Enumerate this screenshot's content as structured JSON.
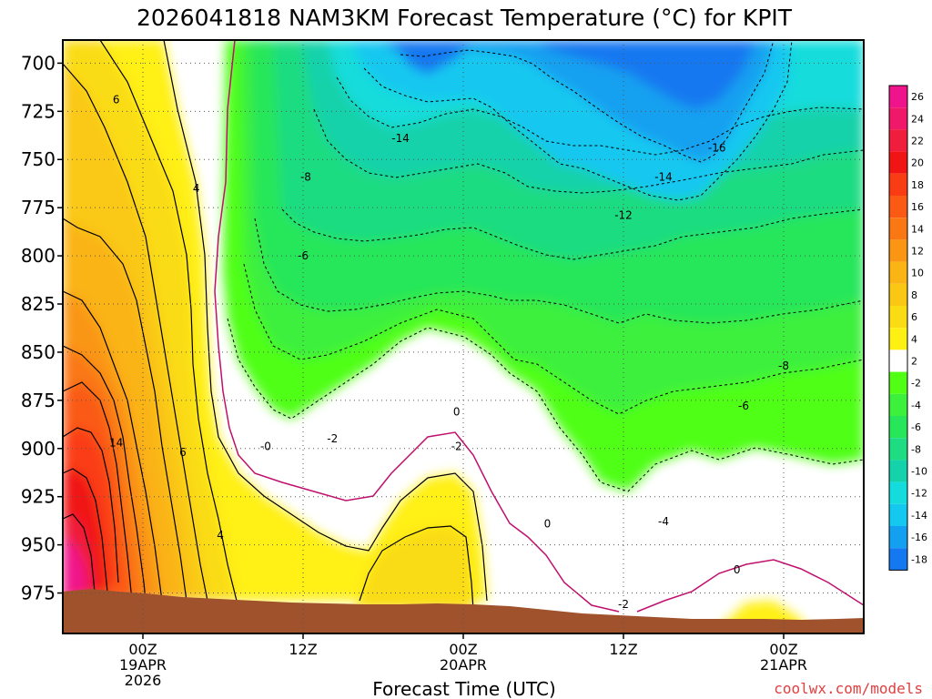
{
  "chart_data": {
    "type": "heatmap",
    "title": "2026041818 NAM3KM Forecast Temperature (°C) for KPIT",
    "xlabel": "Forecast Time (UTC)",
    "ylabel": "",
    "y_axis": {
      "ticks": [
        700,
        725,
        750,
        775,
        800,
        825,
        850,
        875,
        900,
        925,
        950,
        975
      ],
      "tick_labels": [
        "700",
        "725",
        "750",
        "775",
        "800",
        "825",
        "850",
        "875",
        "900",
        "925",
        "950",
        "975"
      ],
      "range": [
        688,
        996
      ],
      "inverted": true
    },
    "x_axis": {
      "ticks": [
        6,
        18,
        30,
        42,
        54
      ],
      "tick_labels": [
        [
          "00Z",
          "19APR",
          "2026"
        ],
        [
          "12Z"
        ],
        [
          "00Z",
          "20APR"
        ],
        [
          "12Z"
        ],
        [
          "00Z",
          "21APR"
        ]
      ],
      "range_forecast_hours": [
        0,
        60
      ]
    },
    "grid": "dotted at y ticks",
    "colorbar": {
      "labels": [
        "26",
        "24",
        "22",
        "20",
        "18",
        "16",
        "14",
        "12",
        "10",
        "8",
        "6",
        "4",
        "2",
        "-2",
        "-4",
        "-6",
        "-8",
        "-10",
        "-12",
        "-14",
        "-16",
        "-18"
      ],
      "colors": [
        "#f0148c",
        "#f01868",
        "#f01e3c",
        "#f01414",
        "#fa3c14",
        "#fa5a14",
        "#fa7814",
        "#fa9614",
        "#fab414",
        "#fac814",
        "#fadc14",
        "#fff014",
        "#ffffff",
        "#50ff14",
        "#3cf03c",
        "#28e65a",
        "#1edc82",
        "#14d2aa",
        "#14dcdc",
        "#14c8f0",
        "#14a0f0",
        "#1478f0"
      ]
    },
    "contour_labels": [
      {
        "text": "6",
        "hour": 4.0,
        "pres": 719
      },
      {
        "text": "4",
        "hour": 10.0,
        "pres": 765
      },
      {
        "text": "14",
        "hour": 4.0,
        "pres": 897
      },
      {
        "text": "6",
        "hour": 9.0,
        "pres": 902
      },
      {
        "text": "4",
        "hour": 11.8,
        "pres": 945
      },
      {
        "text": "-8",
        "hour": 18.2,
        "pres": 759
      },
      {
        "text": "-6",
        "hour": 18.0,
        "pres": 800
      },
      {
        "text": "-14",
        "hour": 25.3,
        "pres": 739
      },
      {
        "text": "-0",
        "hour": 15.2,
        "pres": 899
      },
      {
        "text": "-2",
        "hour": 20.2,
        "pres": 895
      },
      {
        "text": "0",
        "hour": 29.5,
        "pres": 881
      },
      {
        "text": "-2",
        "hour": 29.5,
        "pres": 899
      },
      {
        "text": "0",
        "hour": 36.3,
        "pres": 939
      },
      {
        "text": "-12",
        "hour": 42.0,
        "pres": 779
      },
      {
        "text": "-14",
        "hour": 45.0,
        "pres": 759
      },
      {
        "text": "-16",
        "hour": 49.0,
        "pres": 744
      },
      {
        "text": "-4",
        "hour": 45.0,
        "pres": 938
      },
      {
        "text": "-2",
        "hour": 42.0,
        "pres": 981
      },
      {
        "text": "0",
        "hour": 50.5,
        "pres": 963
      },
      {
        "text": "-6",
        "hour": 51.0,
        "pres": 878
      },
      {
        "text": "-8",
        "hour": 54.0,
        "pres": 857
      }
    ],
    "colors": {
      "terrain": "#a0522d",
      "freezing_line": "#c0106e",
      "positive_contour": "#000000",
      "negative_contour": "#000000"
    }
  },
  "credit": "coolwx.com/models"
}
